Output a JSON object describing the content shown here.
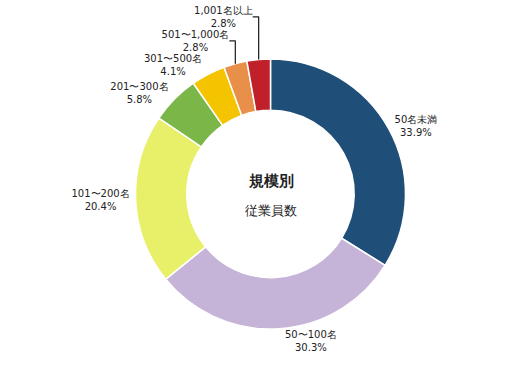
{
  "chart_data": {
    "type": "pie",
    "categories": [
      "50名未満",
      "50〜100名",
      "101〜200名",
      "201〜300名",
      "301〜500名",
      "501〜1,000名",
      "1,001名以上"
    ],
    "values": [
      33.9,
      30.3,
      20.4,
      5.8,
      4.1,
      2.8,
      2.8
    ],
    "value_labels": [
      "33.9%",
      "30.3%",
      "20.4%",
      "5.8%",
      "4.1%",
      "2.8%",
      "2.8%"
    ],
    "colors": [
      "#1f4e79",
      "#c5b4d8",
      "#e8f06a",
      "#7ab648",
      "#f5c400",
      "#e8904a",
      "#c0202a"
    ],
    "annotations": [
      "規模別",
      "従業員数"
    ],
    "data_labels": true
  }
}
